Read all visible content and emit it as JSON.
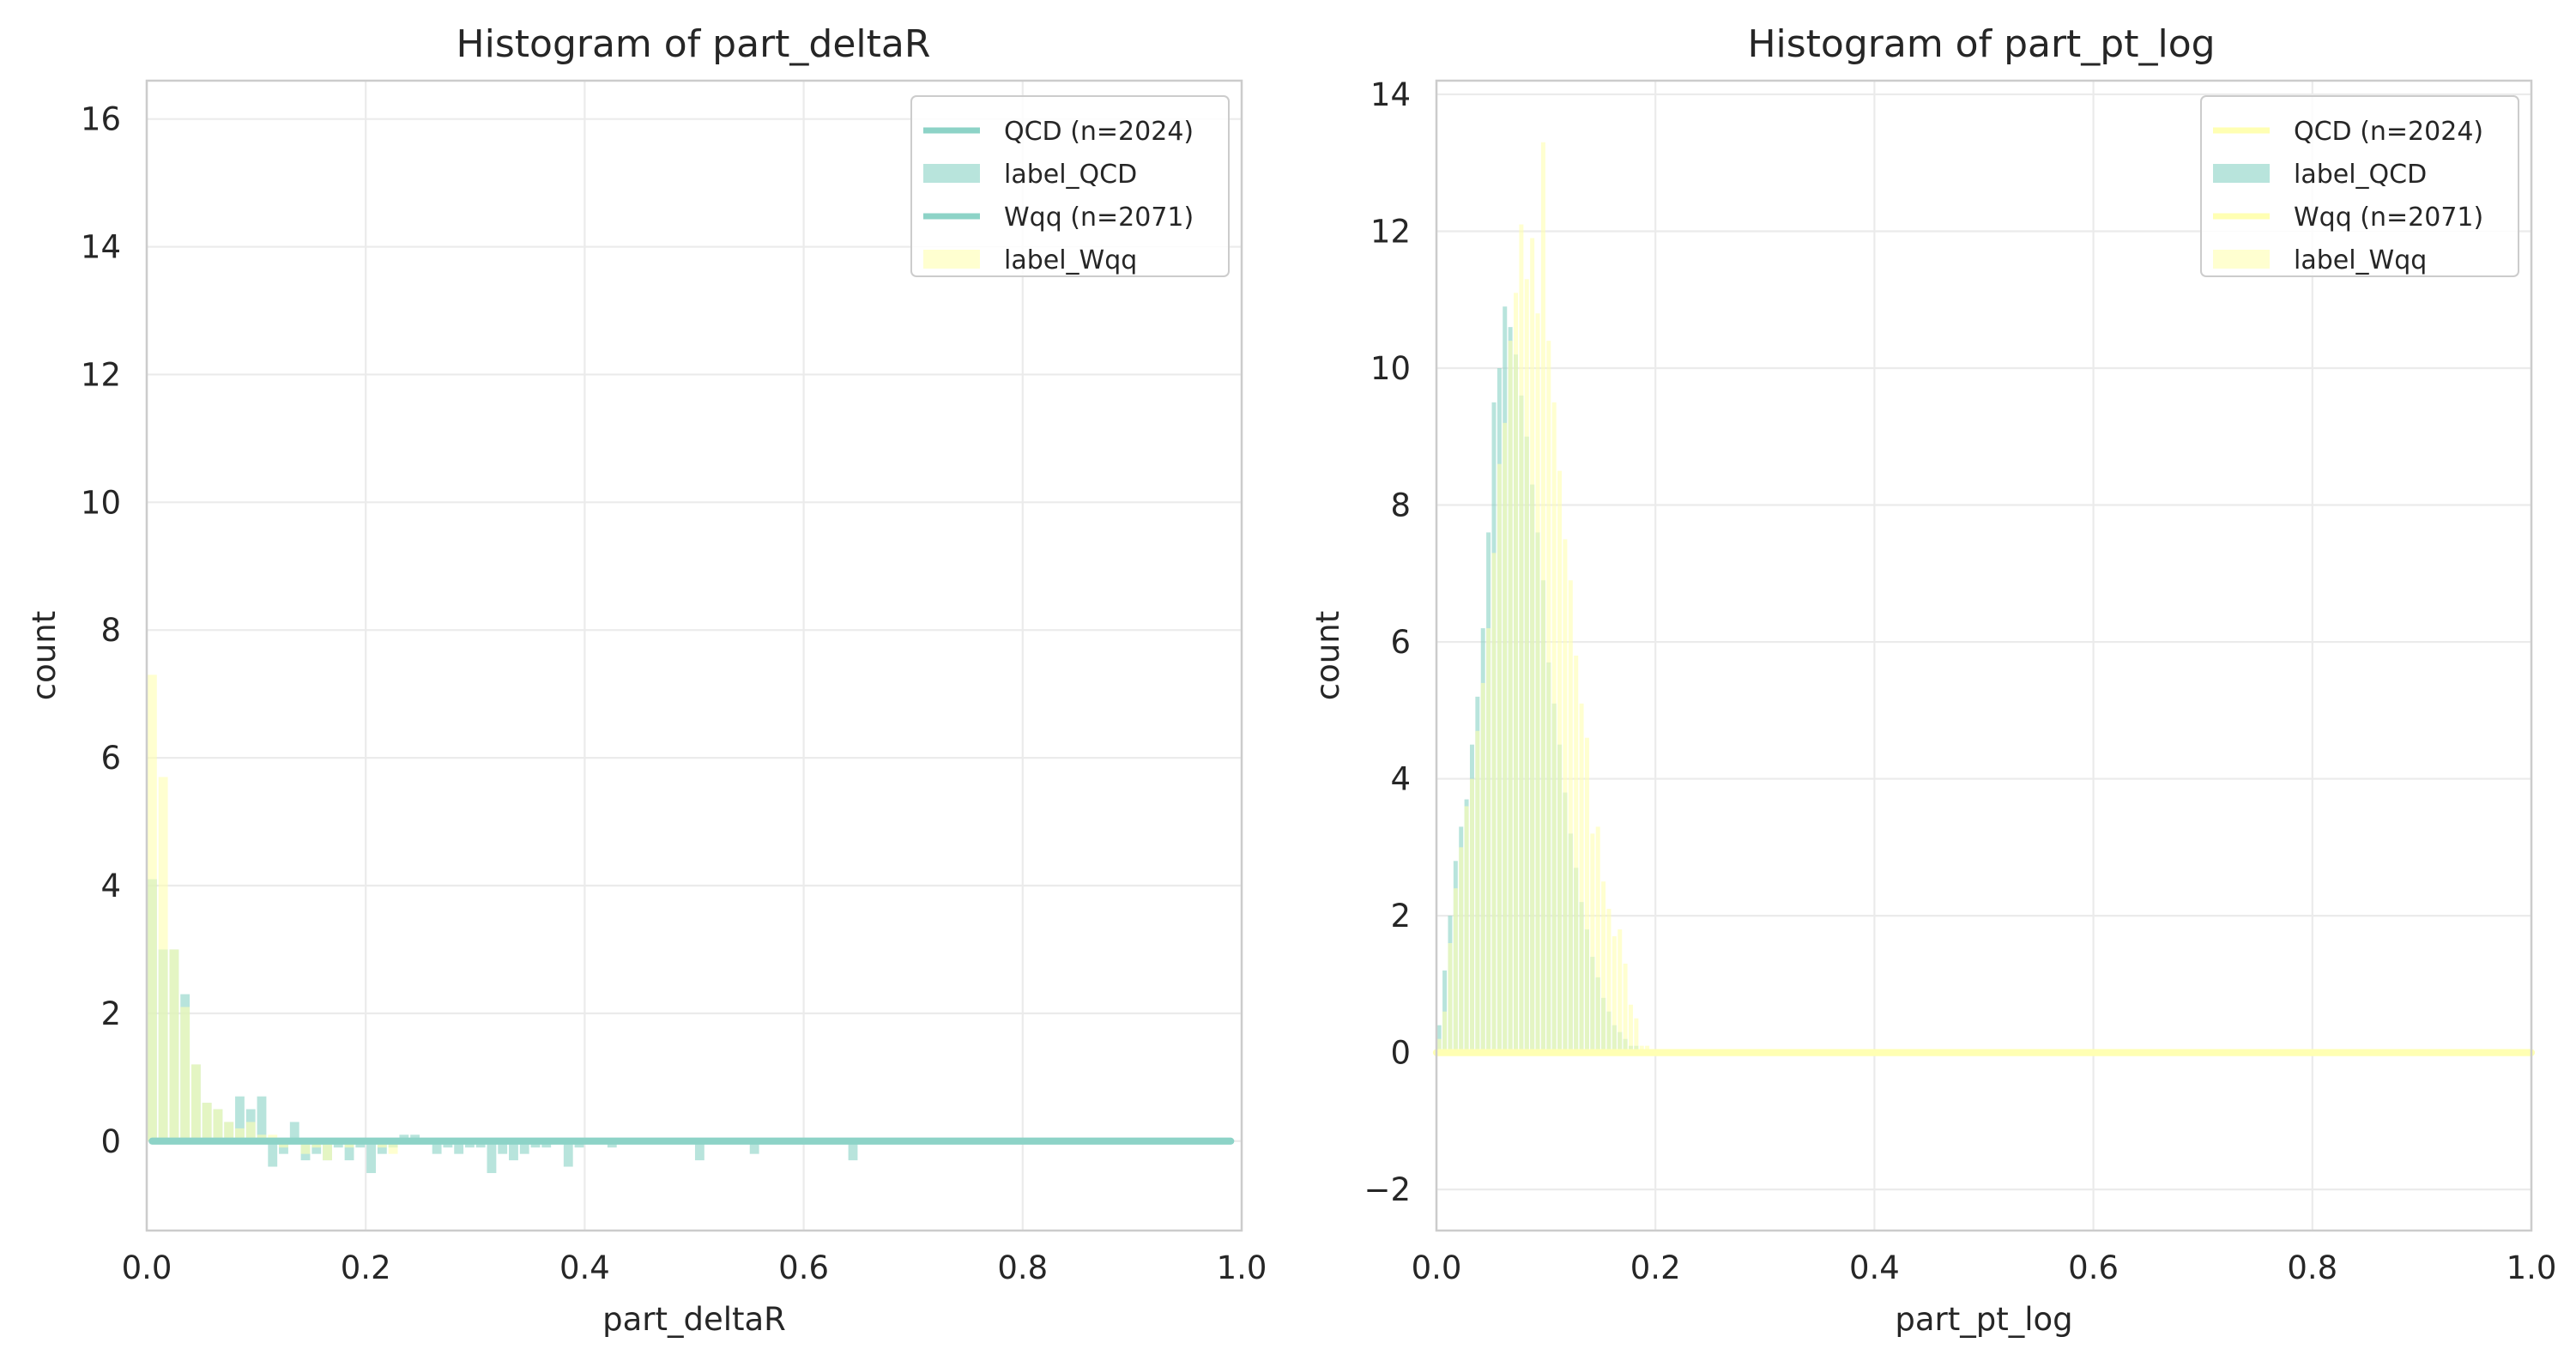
{
  "chart_data": [
    {
      "type": "bar",
      "title": "Histogram of part_deltaR",
      "xlabel": "part_deltaR",
      "ylabel": "count",
      "xlim": [
        0.0,
        1.0
      ],
      "ylim": [
        -1.4,
        16.6
      ],
      "xticks": [
        "0.0",
        "0.2",
        "0.4",
        "0.6",
        "0.8",
        "1.0"
      ],
      "yticks": [
        "0",
        "2",
        "4",
        "6",
        "8",
        "10",
        "12",
        "14",
        "16"
      ],
      "grid": true,
      "legend_position": "top-right",
      "legend": [
        {
          "label": "QCD (n=2024)",
          "kind": "line",
          "color": "#8dd3c7"
        },
        {
          "label": "label_QCD",
          "kind": "patch",
          "color": "#8dd3c7"
        },
        {
          "label": "Wqq (n=2071)",
          "kind": "line",
          "color": "#8dd3c7"
        },
        {
          "label": "label_Wqq",
          "kind": "patch",
          "color": "#ffffb3"
        }
      ],
      "series": [
        {
          "name": "label_QCD",
          "color": "#8dd3c7",
          "bin_width": 0.01,
          "x": [
            0.0,
            0.01,
            0.02,
            0.03,
            0.04,
            0.05,
            0.06,
            0.07,
            0.08,
            0.09,
            0.1,
            0.11,
            0.12,
            0.13,
            0.14,
            0.15,
            0.16,
            0.17,
            0.18,
            0.19,
            0.2,
            0.21,
            0.22,
            0.23,
            0.24,
            0.26,
            0.27,
            0.28,
            0.29,
            0.3,
            0.31,
            0.32,
            0.33,
            0.34,
            0.35,
            0.36,
            0.38,
            0.39,
            0.42,
            0.5,
            0.55,
            0.64
          ],
          "values": [
            4.1,
            3.0,
            3.0,
            2.3,
            1.2,
            0.6,
            0.5,
            0.3,
            0.7,
            0.5,
            0.7,
            -0.4,
            -0.2,
            0.3,
            -0.3,
            -0.2,
            -0.3,
            -0.1,
            -0.3,
            -0.1,
            -0.5,
            -0.2,
            -0.1,
            0.1,
            0.1,
            -0.2,
            -0.1,
            -0.2,
            -0.1,
            -0.1,
            -0.5,
            -0.2,
            -0.3,
            -0.2,
            -0.1,
            -0.1,
            -0.4,
            -0.1,
            -0.1,
            -0.3,
            -0.2,
            -0.3
          ]
        },
        {
          "name": "label_Wqq",
          "color": "#ffffb3",
          "bin_width": 0.01,
          "x": [
            0.0,
            0.01,
            0.02,
            0.03,
            0.04,
            0.05,
            0.06,
            0.07,
            0.08,
            0.09,
            0.1,
            0.11,
            0.12,
            0.14,
            0.15,
            0.16,
            0.18,
            0.21,
            0.22
          ],
          "values": [
            7.3,
            5.7,
            3.0,
            2.1,
            1.2,
            0.6,
            0.5,
            0.3,
            0.2,
            0.3,
            0.1,
            0.1,
            -0.1,
            -0.2,
            -0.1,
            -0.3,
            -0.1,
            -0.1,
            -0.2
          ]
        }
      ],
      "lines": [
        {
          "name": "QCD (n=2024)",
          "color": "#8dd3c7",
          "x": [
            0.005,
            0.99
          ],
          "y": [
            0.0,
            0.0
          ]
        },
        {
          "name": "Wqq (n=2071)",
          "color": "#8dd3c7",
          "x": [
            0.005,
            0.99
          ],
          "y": [
            0.0,
            0.0
          ]
        }
      ]
    },
    {
      "type": "bar",
      "title": "Histogram of part_pt_log",
      "xlabel": "part_pt_log",
      "ylabel": "count",
      "xlim": [
        0.0,
        1.0
      ],
      "ylim": [
        -2.6,
        14.2
      ],
      "xticks": [
        "0.0",
        "0.2",
        "0.4",
        "0.6",
        "0.8",
        "1.0"
      ],
      "yticks": [
        "−2",
        "0",
        "2",
        "4",
        "6",
        "8",
        "10",
        "12",
        "14"
      ],
      "grid": true,
      "legend_position": "top-right",
      "legend": [
        {
          "label": "QCD (n=2024)",
          "kind": "line",
          "color": "#ffffb3"
        },
        {
          "label": "label_QCD",
          "kind": "patch",
          "color": "#8dd3c7"
        },
        {
          "label": "Wqq (n=2071)",
          "kind": "line",
          "color": "#ffffb3"
        },
        {
          "label": "label_Wqq",
          "kind": "patch",
          "color": "#ffffb3"
        }
      ],
      "series": [
        {
          "name": "label_QCD",
          "color": "#8dd3c7",
          "bin_width": 0.005,
          "x": [
            0.0,
            0.005,
            0.01,
            0.015,
            0.02,
            0.025,
            0.03,
            0.035,
            0.04,
            0.045,
            0.05,
            0.055,
            0.06,
            0.065,
            0.07,
            0.075,
            0.08,
            0.085,
            0.09,
            0.095,
            0.1,
            0.105,
            0.11,
            0.115,
            0.12,
            0.125,
            0.13,
            0.135,
            0.14,
            0.145,
            0.15,
            0.155,
            0.16,
            0.165,
            0.17,
            0.175,
            0.18
          ],
          "values": [
            0.4,
            1.2,
            2.0,
            2.8,
            3.3,
            3.7,
            4.5,
            5.2,
            6.2,
            7.6,
            9.5,
            10.0,
            10.9,
            10.6,
            10.2,
            9.6,
            9.0,
            8.3,
            7.6,
            6.9,
            5.7,
            5.1,
            4.5,
            3.8,
            3.2,
            2.7,
            2.2,
            1.8,
            1.4,
            1.1,
            0.8,
            0.6,
            0.4,
            0.3,
            0.2,
            0.1,
            0.1
          ]
        },
        {
          "name": "label_Wqq",
          "color": "#ffffb3",
          "bin_width": 0.005,
          "x": [
            0.0,
            0.005,
            0.01,
            0.015,
            0.02,
            0.025,
            0.03,
            0.035,
            0.04,
            0.045,
            0.05,
            0.055,
            0.06,
            0.065,
            0.07,
            0.075,
            0.08,
            0.085,
            0.09,
            0.095,
            0.1,
            0.105,
            0.11,
            0.115,
            0.12,
            0.125,
            0.13,
            0.135,
            0.14,
            0.145,
            0.15,
            0.155,
            0.16,
            0.165,
            0.17,
            0.175,
            0.18,
            0.185,
            0.19
          ],
          "values": [
            0.2,
            0.6,
            1.6,
            2.4,
            3.0,
            3.6,
            4.0,
            4.7,
            5.4,
            6.2,
            7.3,
            8.6,
            9.2,
            10.4,
            11.1,
            12.1,
            11.3,
            11.9,
            10.8,
            13.3,
            10.4,
            9.5,
            8.5,
            7.5,
            6.9,
            5.8,
            5.1,
            4.6,
            3.2,
            3.3,
            2.5,
            2.1,
            1.7,
            1.8,
            1.3,
            0.7,
            0.5,
            0.1,
            0.1
          ]
        }
      ],
      "lines": [
        {
          "name": "QCD (n=2024)",
          "color": "#ffffb3",
          "x": [
            0.0,
            1.0
          ],
          "y": [
            0.0,
            0.0
          ]
        },
        {
          "name": "Wqq (n=2071)",
          "color": "#ffffb3",
          "x": [
            0.0,
            1.0
          ],
          "y": [
            0.0,
            0.0
          ]
        }
      ]
    }
  ]
}
